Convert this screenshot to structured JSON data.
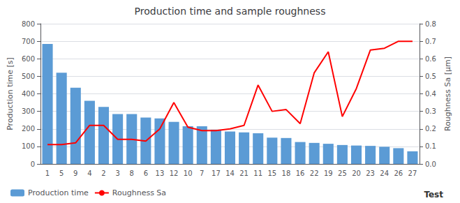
{
  "chart_data": {
    "type": "bar",
    "title": "Production time and sample roughness",
    "xlabel": "Test",
    "ylabel": "Production time [s]",
    "y2label": "Roughness Sa [μm]",
    "categories": [
      "1",
      "5",
      "9",
      "4",
      "2",
      "3",
      "8",
      "6",
      "13",
      "12",
      "10",
      "7",
      "17",
      "14",
      "21",
      "11",
      "15",
      "18",
      "16",
      "22",
      "19",
      "25",
      "20",
      "23",
      "24",
      "26",
      "27"
    ],
    "series": [
      {
        "name": "Production time",
        "type": "bar",
        "color": "#5B9BD5",
        "values": [
          685,
          520,
          435,
          360,
          325,
          285,
          285,
          265,
          260,
          240,
          215,
          215,
          195,
          185,
          180,
          175,
          150,
          148,
          125,
          120,
          115,
          108,
          105,
          103,
          98,
          90,
          72
        ]
      },
      {
        "name": "Roughness Sa",
        "type": "line",
        "color": "#FF0000",
        "axis": "y2",
        "values": [
          0.11,
          0.11,
          0.12,
          0.22,
          0.22,
          0.14,
          0.14,
          0.13,
          0.2,
          0.35,
          0.21,
          0.19,
          0.19,
          0.2,
          0.22,
          0.45,
          0.3,
          0.31,
          0.23,
          0.52,
          0.64,
          0.27,
          0.43,
          0.65,
          0.66,
          0.7,
          0.7
        ]
      }
    ],
    "ylim": [
      0,
      800
    ],
    "yticks": [
      0,
      100,
      200,
      300,
      400,
      500,
      600,
      700,
      800
    ],
    "y2lim": [
      0.0,
      0.8
    ],
    "y2ticks": [
      {
        "value": 0,
        "label": "0.0"
      },
      0.1,
      0.2,
      0.3,
      0.4,
      0.5,
      0.6,
      0.7,
      0.8
    ],
    "grid": true,
    "legend": "lower left"
  }
}
